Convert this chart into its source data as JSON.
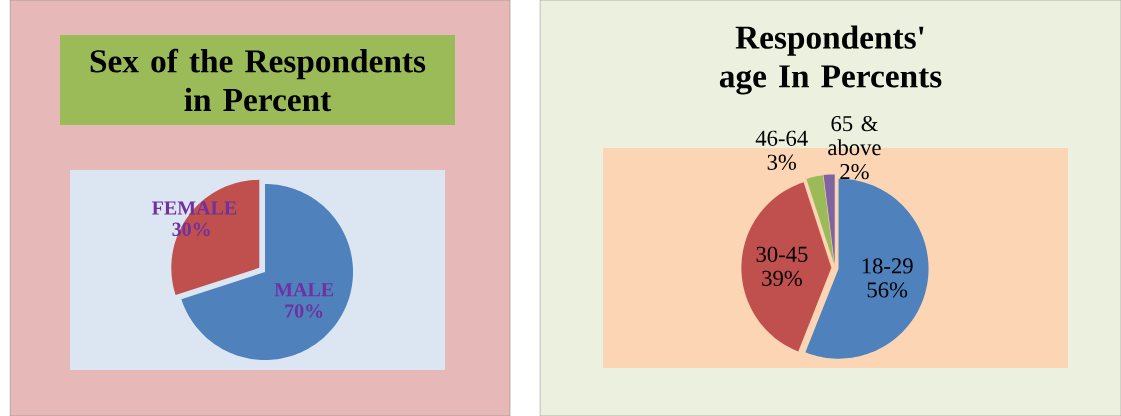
{
  "chart_data": [
    {
      "type": "pie",
      "title": "Sex  of the Respondents in  Percent",
      "categories": [
        "MALE",
        "FEMALE"
      ],
      "values": [
        70,
        30
      ],
      "colors": [
        "#4f81bd",
        "#c0504d"
      ],
      "value_labels": [
        "70%",
        "30%"
      ]
    },
    {
      "type": "pie",
      "title": "Respondents' age In Percents",
      "categories": [
        "18-29",
        "30-45",
        "46-64",
        "65 & above"
      ],
      "values": [
        56,
        39,
        3,
        2
      ],
      "colors": [
        "#4f81bd",
        "#c0504d",
        "#9bbb59",
        "#8064a2"
      ],
      "value_labels": [
        "56%",
        "39%",
        "3%",
        "2%"
      ]
    }
  ]
}
